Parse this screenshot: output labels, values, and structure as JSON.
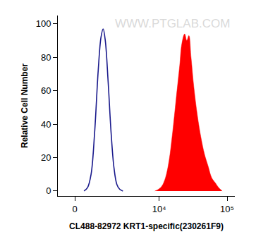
{
  "chart_data": {
    "type": "line",
    "x_label": "CL488-82972 KRT1-specific(230261F9)",
    "y_label": "Relative Cell Number",
    "annotations": [
      "WWW.PTGLAB.COM"
    ],
    "log": "x",
    "grid": false,
    "xlim": [
      -700,
      130000
    ],
    "xticks": [
      0,
      {
        "value": 10000,
        "label": "10⁴"
      },
      {
        "value": 100000,
        "label": "10⁵"
      }
    ],
    "ylim": [
      -3,
      105
    ],
    "yticks": [
      0,
      20,
      40,
      60,
      80,
      100
    ],
    "series": [
      {
        "type": "line",
        "color": "#1a1a8c",
        "x": [
          366,
          514,
          670,
          835,
          1014,
          1164,
          1287,
          1416,
          1601,
          1803,
          2020,
          2256,
          2518,
          2830
        ],
        "values": [
          0,
          2,
          10,
          35,
          72,
          92,
          97,
          90,
          65,
          35,
          14,
          4,
          1,
          0
        ]
      },
      {
        "type": "area",
        "color": "#ff0000",
        "x": [
          8640,
          9760,
          11000,
          12420,
          14000,
          15800,
          17810,
          20090,
          21590,
          23760,
          25540,
          27440,
          29500,
          32460,
          36600,
          41240,
          46500,
          52450,
          59200,
          66700,
          75200,
          84800
        ],
        "values": [
          0,
          1,
          3,
          8,
          18,
          35,
          55,
          75,
          88,
          94,
          90,
          93,
          80,
          62,
          45,
          32,
          22,
          15,
          8,
          5,
          2,
          0
        ]
      }
    ]
  }
}
